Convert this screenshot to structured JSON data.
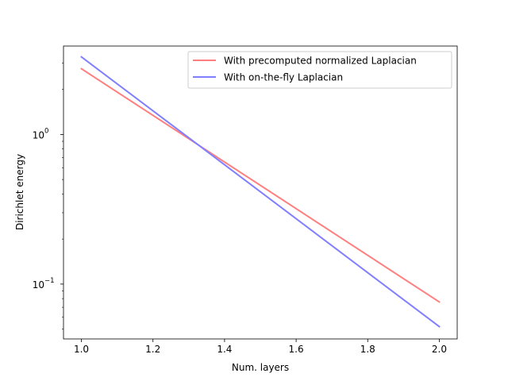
{
  "chart_data": {
    "type": "line",
    "xlabel": "Num. layers",
    "ylabel": "Dirichlet energy",
    "yscale": "log",
    "xlim": [
      0.95,
      2.05
    ],
    "ylim": [
      0.043,
      3.9
    ],
    "x_ticks": [
      1.0,
      1.2,
      1.4,
      1.6,
      1.8,
      2.0
    ],
    "x_tick_labels": [
      "1.0",
      "1.2",
      "1.4",
      "1.6",
      "1.8",
      "2.0"
    ],
    "y_major_ticks": [
      0.1,
      1
    ],
    "y_tick_labels": [
      "10",
      "10"
    ],
    "y_tick_exponents": [
      "−1",
      "0"
    ],
    "y_minor_ticks": [
      0.05,
      0.06,
      0.07,
      0.08,
      0.09,
      0.2,
      0.3,
      0.4,
      0.5,
      0.6,
      0.7,
      0.8,
      0.9,
      2,
      3
    ],
    "grid": false,
    "legend_position": "top-right",
    "series": [
      {
        "name": "With precomputed normalized Laplacian",
        "color": "#ff7f7f",
        "x": [
          1.0,
          2.0
        ],
        "values": [
          2.75,
          0.076
        ]
      },
      {
        "name": "With on-the-fly Laplacian",
        "color": "#7f7fff",
        "x": [
          1.0,
          2.0
        ],
        "values": [
          3.3,
          0.052
        ]
      }
    ]
  }
}
